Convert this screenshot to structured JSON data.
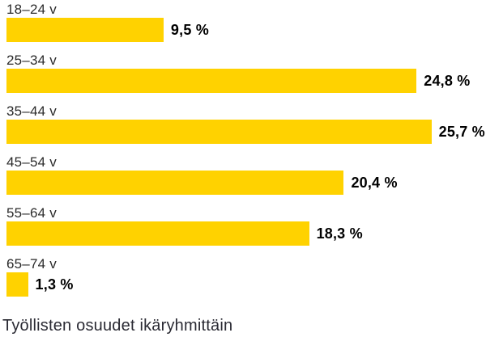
{
  "chart_data": {
    "type": "bar",
    "orientation": "horizontal",
    "title": "Työllisten osuudet ikäryhmittäin",
    "categories": [
      "18–24 v",
      "25–34 v",
      "35–44 v",
      "45–54 v",
      "55–64 v",
      "65–74 v"
    ],
    "values": [
      9.5,
      24.8,
      25.7,
      20.4,
      18.3,
      1.3
    ],
    "value_labels": [
      "9,5 %",
      "24,8 %",
      "25,7 %",
      "20,4 %",
      "18,3 %",
      "1,3 %"
    ],
    "unit": "%",
    "xlim": [
      0,
      29
    ],
    "grid": false,
    "legend": false,
    "bar_color": "#ffd200"
  },
  "colors": {
    "bar": "#ffd200",
    "category_label": "#2b2b2b",
    "value_label": "#000000",
    "caption": "#2a2a33",
    "background": "#ffffff"
  }
}
